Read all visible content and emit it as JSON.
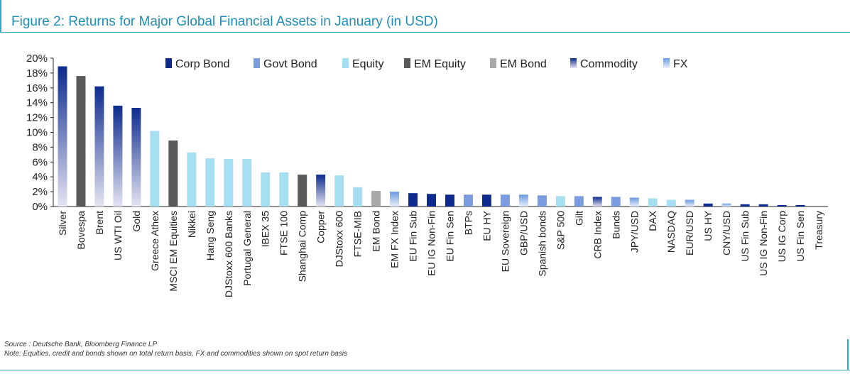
{
  "title": "Figure 2: Returns for Major Global Financial Assets in January (in USD)",
  "source": "Source : Deutsche Bank, Bloomberg Finance LP",
  "note": "Note: Equities, credit and bonds shown on total return basis, FX and commodities shown on spot return basis",
  "colors": {
    "corp_bond": "#0d2b8e",
    "govt_bond": "#7b9ce0",
    "equity": "#a6dff2",
    "em_equity": "#5a5a5a",
    "em_bond": "#a9a9a9",
    "commodity_top": "#0d2b8e",
    "commodity_bottom": "#e4e4f2",
    "fx_top": "#6a9ae0",
    "fx_bottom": "#e8f0fb"
  },
  "chart_data": {
    "type": "bar",
    "title": "Figure 2: Returns for Major Global Financial Assets in January (in USD)",
    "xlabel": "",
    "ylabel": "",
    "ylim": [
      0,
      20
    ],
    "yticks": [
      0,
      2,
      4,
      6,
      8,
      10,
      12,
      14,
      16,
      18,
      20
    ],
    "ytick_labels": [
      "0%",
      "2%",
      "4%",
      "6%",
      "8%",
      "10%",
      "12%",
      "14%",
      "16%",
      "18%",
      "20%"
    ],
    "legend": {
      "placement": "top",
      "entries": [
        {
          "key": "corp_bond",
          "label": "Corp Bond"
        },
        {
          "key": "govt_bond",
          "label": "Govt Bond"
        },
        {
          "key": "equity",
          "label": "Equity"
        },
        {
          "key": "em_equity",
          "label": "EM Equity"
        },
        {
          "key": "em_bond",
          "label": "EM Bond"
        },
        {
          "key": "commodity",
          "label": "Commodity"
        },
        {
          "key": "fx",
          "label": "FX"
        }
      ]
    },
    "categories": [
      "Silver",
      "Bovespa",
      "Brent",
      "US WTI Oil",
      "Gold",
      "Greece Athex",
      "MSCI EM Equities",
      "Nikkei",
      "Hang Seng",
      "DJStoxx 600 Banks",
      "Portugal General",
      "IBEX 35",
      "FTSE 100",
      "Shanghai Comp",
      "Copper",
      "DJStoxx 600",
      "FTSE-MIB",
      "EM Bond",
      "EM FX Index",
      "EU Fin Sub",
      "EU IG Non-Fin",
      "EU Fin Sen",
      "BTPs",
      "EU HY",
      "EU Sovereign",
      "GBP/USD",
      "Spanish bonds",
      "S&P 500",
      "Gilt",
      "CRB Index",
      "Bunds",
      "JPY/USD",
      "DAX",
      "NASDAQ",
      "EUR/USD",
      "US HY",
      "CNY/USD",
      "US Fin Sub",
      "US IG Non-Fin",
      "US IG Corp",
      "US Fin Sen",
      "Treasury"
    ],
    "values": [
      18.9,
      17.6,
      16.2,
      13.6,
      13.3,
      10.2,
      8.9,
      7.3,
      6.5,
      6.4,
      6.4,
      4.6,
      4.6,
      4.3,
      4.3,
      4.2,
      2.6,
      2.1,
      2.0,
      1.8,
      1.7,
      1.6,
      1.6,
      1.6,
      1.6,
      1.6,
      1.5,
      1.4,
      1.4,
      1.3,
      1.3,
      1.2,
      1.1,
      0.9,
      0.9,
      0.4,
      0.4,
      0.3,
      0.3,
      0.2,
      0.2,
      0.0
    ],
    "asset_class": [
      "commodity",
      "em_equity",
      "commodity",
      "commodity",
      "commodity",
      "equity",
      "em_equity",
      "equity",
      "equity",
      "equity",
      "equity",
      "equity",
      "equity",
      "em_equity",
      "commodity",
      "equity",
      "equity",
      "em_bond",
      "fx",
      "corp_bond",
      "corp_bond",
      "corp_bond",
      "govt_bond",
      "corp_bond",
      "govt_bond",
      "fx",
      "govt_bond",
      "equity",
      "govt_bond",
      "commodity",
      "govt_bond",
      "fx",
      "equity",
      "equity",
      "fx",
      "corp_bond",
      "fx",
      "corp_bond",
      "corp_bond",
      "corp_bond",
      "corp_bond",
      "govt_bond"
    ]
  }
}
